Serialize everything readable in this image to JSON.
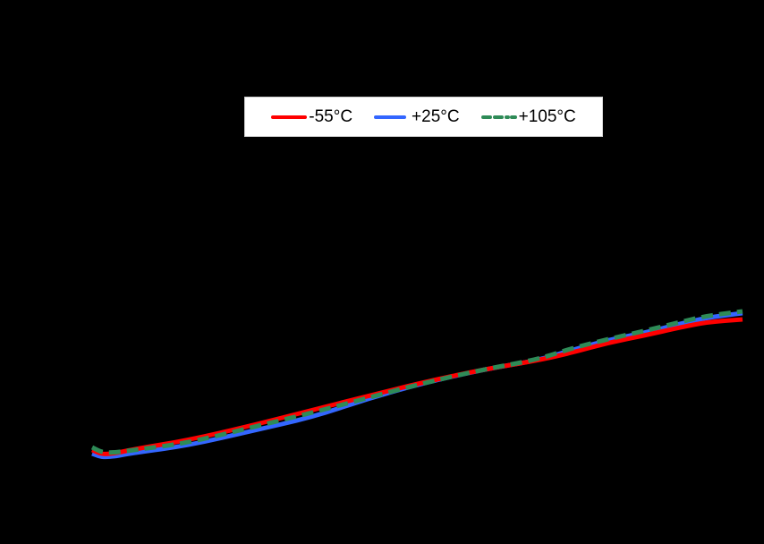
{
  "chart_data": {
    "type": "line",
    "title": "",
    "xlabel": "",
    "ylabel": "",
    "background": "#000000",
    "grid": false,
    "legend_position": "top-center (inside plot)",
    "note": "Axis lines, tick labels and axis titles are not visible (rendered black on black); values below are expressed in relative units derived from pixel positions (x: 0-100 across curve span, y: 0-100 relative height).",
    "xlim": [
      0,
      100
    ],
    "ylim": [
      0,
      100
    ],
    "series": [
      {
        "name": "-55°C",
        "color": "#ff0000",
        "style": "solid",
        "x": [
          0,
          2,
          7,
          15,
          25,
          35,
          45,
          55,
          65,
          70,
          75,
          80,
          85,
          90,
          95,
          100
        ],
        "y": [
          6,
          4,
          6,
          9,
          14,
          21,
          28,
          36,
          44,
          49,
          52,
          57,
          61,
          66,
          72,
          74
        ],
        "pixels": [
          [
            103,
            503
          ],
          [
            117,
            509
          ],
          [
            150,
            502
          ],
          [
            210,
            492
          ],
          [
            280,
            476
          ],
          [
            350,
            458
          ],
          [
            410,
            443
          ],
          [
            470,
            428
          ],
          [
            540,
            413
          ],
          [
            600,
            403
          ],
          [
            640,
            394
          ],
          [
            680,
            383
          ],
          [
            720,
            375
          ],
          [
            760,
            366
          ],
          [
            790,
            360
          ],
          [
            830,
            357
          ]
        ]
      },
      {
        "name": "+25°C",
        "color": "#3366ff",
        "style": "solid",
        "x": [
          0,
          2,
          7,
          15,
          25,
          35,
          45,
          55,
          65,
          70,
          75,
          80,
          85,
          90,
          95,
          100
        ],
        "y": [
          4,
          1,
          3,
          6,
          11,
          18,
          26,
          35,
          44,
          49,
          54,
          59,
          63,
          68,
          74,
          78
        ],
        "pixels": [
          [
            103,
            507
          ],
          [
            117,
            512
          ],
          [
            150,
            506
          ],
          [
            210,
            498
          ],
          [
            280,
            482
          ],
          [
            350,
            466
          ],
          [
            410,
            446
          ],
          [
            470,
            429
          ],
          [
            540,
            413
          ],
          [
            600,
            403
          ],
          [
            640,
            391
          ],
          [
            680,
            380
          ],
          [
            720,
            372
          ],
          [
            760,
            362
          ],
          [
            790,
            355
          ],
          [
            830,
            350
          ]
        ]
      },
      {
        "name": "+105°C",
        "color": "#2e8b57",
        "style": "dashed",
        "x": [
          0,
          2,
          7,
          15,
          25,
          35,
          45,
          55,
          65,
          70,
          75,
          80,
          85,
          90,
          95,
          100
        ],
        "y": [
          8,
          4,
          6,
          8,
          13,
          20,
          27,
          36,
          44,
          49,
          55,
          60,
          64,
          69,
          75,
          79
        ],
        "pixels": [
          [
            103,
            500
          ],
          [
            117,
            507
          ],
          [
            150,
            503
          ],
          [
            210,
            495
          ],
          [
            280,
            478
          ],
          [
            350,
            461
          ],
          [
            410,
            445
          ],
          [
            470,
            429
          ],
          [
            540,
            413
          ],
          [
            600,
            402
          ],
          [
            640,
            389
          ],
          [
            680,
            379
          ],
          [
            720,
            370
          ],
          [
            760,
            360
          ],
          [
            790,
            353
          ],
          [
            830,
            348
          ]
        ]
      }
    ]
  },
  "legend": {
    "items": [
      {
        "label": "-55°C",
        "color": "#ff0000",
        "style": "solid"
      },
      {
        "label": "+25°C",
        "color": "#3366ff",
        "style": "solid"
      },
      {
        "label": "+105°C",
        "color": "#2e8b57",
        "style": "dashed"
      }
    ]
  }
}
